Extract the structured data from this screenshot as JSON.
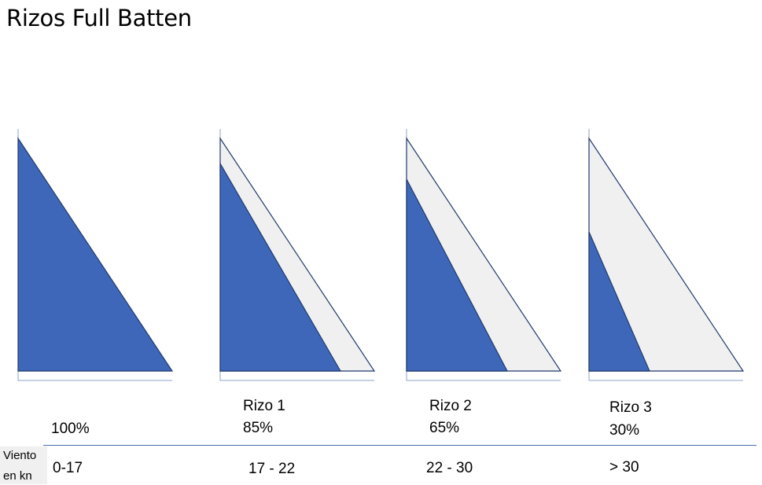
{
  "title": "Rizos Full Batten",
  "colors": {
    "sail_fill": "#3f67b9",
    "reefed_area": "#f0f0f0",
    "outline": "#1f3a6b"
  },
  "sails": [
    {
      "rizo": "",
      "percent": "100%",
      "wind": "0-17",
      "sail_fraction": 1.0
    },
    {
      "rizo": "Rizo 1",
      "percent": "85%",
      "wind": "17 - 22",
      "sail_fraction": 0.85
    },
    {
      "rizo": "Rizo 2",
      "percent": "65%",
      "wind": "22 - 30",
      "sail_fraction": 0.65
    },
    {
      "rizo": "Rizo 3",
      "percent": "30%",
      "wind": "> 30",
      "sail_fraction": 0.3
    }
  ],
  "row_label": {
    "line1": "Viento",
    "line2": "en kn"
  }
}
